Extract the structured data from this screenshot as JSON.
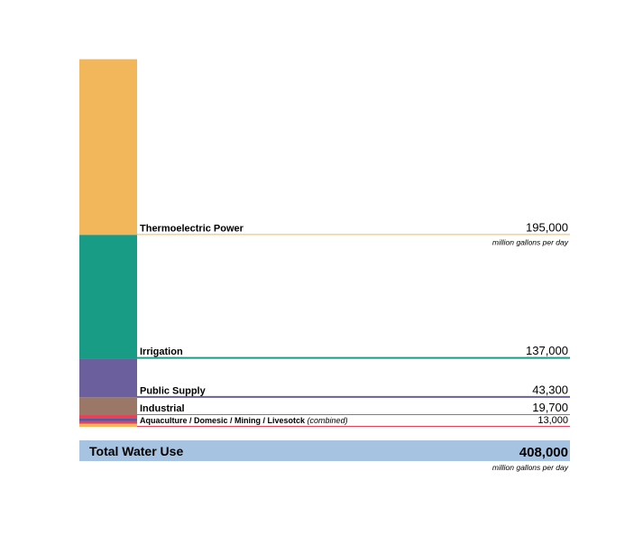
{
  "chart_data": {
    "type": "bar",
    "stacked": true,
    "categories": [
      "Thermoelectric Power",
      "Irrigation",
      "Public Supply",
      "Industrial",
      "Aquaculture / Domesic / Mining / Livesotck"
    ],
    "values": [
      195000,
      137000,
      43300,
      19700,
      13000
    ],
    "value_labels": [
      "195,000",
      "137,000",
      "43,300",
      "19,700",
      "13,000"
    ],
    "label_notes": [
      "",
      "",
      "",
      "",
      "(combined)"
    ],
    "colors": [
      "#f2b75a",
      "#189c86",
      "#6b5f9e",
      "#9a7766",
      "#e5425a"
    ],
    "combined_stripe_colors": [
      "#e5425a",
      "#3f62ad",
      "#e5425a",
      "#f2b75a"
    ],
    "unit_note": "million gallons per day",
    "total": {
      "label": "Total Water Use",
      "value": 408000,
      "value_label": "408,000",
      "color": "#a7c3e2"
    },
    "stack_order": "largest-on-top"
  }
}
